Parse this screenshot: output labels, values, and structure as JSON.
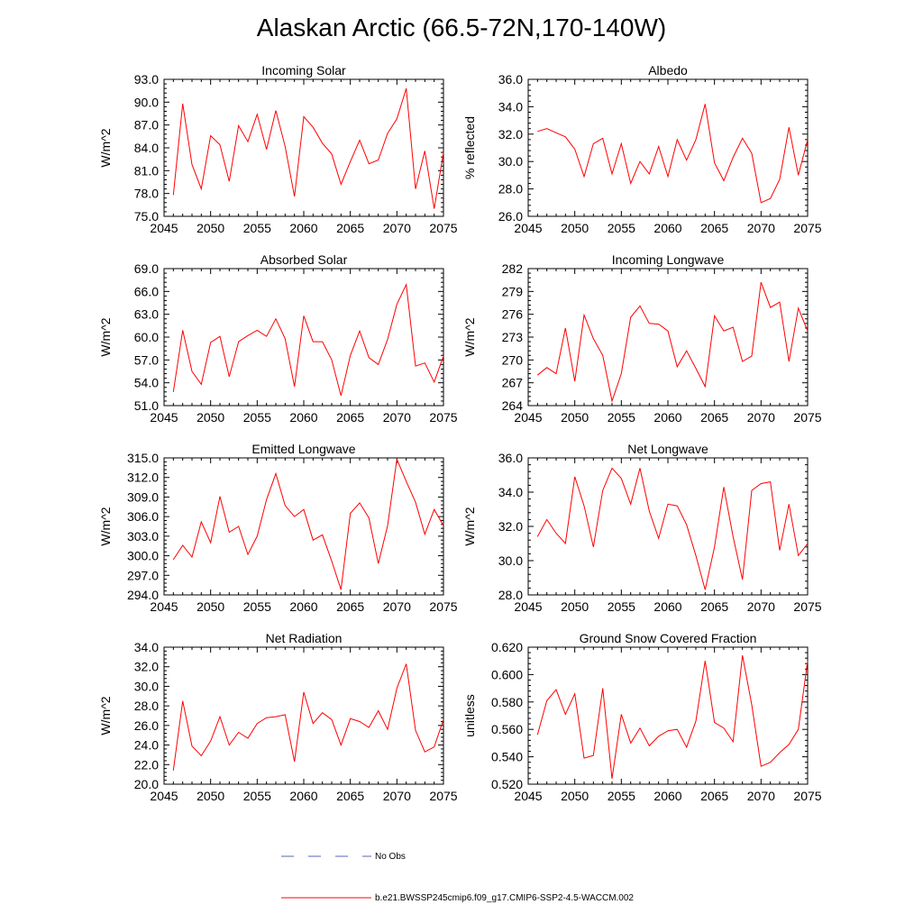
{
  "figure": {
    "title": "Alaskan Arctic (66.5-72N,170-140W)",
    "legend": {
      "obs_label": "No Obs",
      "obs_color": "#5566bb",
      "model_label": "b.e21.BWSSP245cmip6.f09_g17.CMIP6-SSP2-4.5-WACCM.002",
      "model_color": "#ff0000"
    }
  },
  "chart_data": [
    {
      "type": "line",
      "title": "Incoming Solar",
      "ylabel": "W/m^2",
      "xlim": [
        2045,
        2075
      ],
      "ylim": [
        75,
        93
      ],
      "yticks": [
        "75.0",
        "78.0",
        "81.0",
        "84.0",
        "87.0",
        "90.0",
        "93.0"
      ],
      "xticks": [
        "2045",
        "2050",
        "2055",
        "2060",
        "2065",
        "2070",
        "2075"
      ],
      "series": [
        {
          "name": "b.e21.BWSSP245cmip6.f09_g17.CMIP6-SSP2-4.5-WACCM.002",
          "x_start": 2046,
          "values": [
            77.8,
            89.8,
            81.8,
            78.6,
            85.6,
            84.4,
            79.6,
            86.9,
            84.8,
            88.4,
            83.8,
            88.9,
            84.2,
            77.6,
            88.1,
            86.7,
            84.6,
            83.2,
            79.2,
            82.2,
            85.0,
            81.9,
            82.4,
            85.9,
            87.8,
            91.8,
            78.6,
            83.6,
            76.0,
            83.4
          ]
        }
      ]
    },
    {
      "type": "line",
      "title": "Albedo",
      "ylabel": "% reflected",
      "xlim": [
        2045,
        2075
      ],
      "ylim": [
        26,
        36
      ],
      "yticks": [
        "26.0",
        "28.0",
        "30.0",
        "32.0",
        "34.0",
        "36.0"
      ],
      "xticks": [
        "2045",
        "2050",
        "2055",
        "2060",
        "2065",
        "2070",
        "2075"
      ],
      "series": [
        {
          "name": "b.e21.BWSSP245cmip6.f09_g17.CMIP6-SSP2-4.5-WACCM.002",
          "x_start": 2046,
          "values": [
            32.2,
            32.4,
            32.1,
            31.8,
            30.9,
            28.9,
            31.3,
            31.7,
            29.1,
            31.3,
            28.4,
            30.0,
            29.1,
            31.1,
            28.9,
            31.6,
            30.1,
            31.6,
            34.2,
            29.9,
            28.6,
            30.3,
            31.7,
            30.6,
            27.0,
            27.3,
            28.7,
            32.5,
            29.0,
            31.6
          ]
        }
      ]
    },
    {
      "type": "line",
      "title": "Absorbed Solar",
      "ylabel": "W/m^2",
      "xlim": [
        2045,
        2075
      ],
      "ylim": [
        51,
        69
      ],
      "yticks": [
        "51.0",
        "54.0",
        "57.0",
        "60.0",
        "63.0",
        "66.0",
        "69.0"
      ],
      "xticks": [
        "2045",
        "2050",
        "2055",
        "2060",
        "2065",
        "2070",
        "2075"
      ],
      "series": [
        {
          "name": "b.e21.BWSSP245cmip6.f09_g17.CMIP6-SSP2-4.5-WACCM.002",
          "x_start": 2046,
          "values": [
            52.8,
            60.9,
            55.5,
            53.8,
            59.3,
            60.1,
            54.8,
            59.4,
            60.2,
            60.9,
            60.1,
            62.4,
            59.8,
            53.5,
            62.8,
            59.4,
            59.4,
            57.0,
            52.3,
            57.6,
            60.8,
            57.3,
            56.4,
            59.7,
            64.3,
            66.9,
            56.2,
            56.6,
            54.1,
            57.5
          ]
        }
      ]
    },
    {
      "type": "line",
      "title": "Incoming Longwave",
      "ylabel": "W/m^2",
      "xlim": [
        2045,
        2075
      ],
      "ylim": [
        264,
        282
      ],
      "yticks": [
        "264",
        "267",
        "270",
        "273",
        "276",
        "279",
        "282"
      ],
      "xticks": [
        "2045",
        "2050",
        "2055",
        "2060",
        "2065",
        "2070",
        "2075"
      ],
      "series": [
        {
          "name": "b.e21.BWSSP245cmip6.f09_g17.CMIP6-SSP2-4.5-WACCM.002",
          "x_start": 2046,
          "values": [
            268.0,
            269.0,
            268.2,
            274.2,
            267.2,
            275.9,
            272.8,
            270.6,
            264.6,
            268.2,
            275.6,
            277.1,
            274.8,
            274.7,
            273.8,
            269.1,
            271.2,
            268.9,
            266.5,
            275.8,
            273.8,
            274.3,
            269.8,
            270.5,
            280.2,
            276.9,
            277.6,
            269.8,
            276.8,
            273.8
          ]
        }
      ]
    },
    {
      "type": "line",
      "title": "Emitted Longwave",
      "ylabel": "W/m^2",
      "xlim": [
        2045,
        2075
      ],
      "ylim": [
        294,
        315
      ],
      "yticks": [
        "294.0",
        "297.0",
        "300.0",
        "303.0",
        "306.0",
        "309.0",
        "312.0",
        "315.0"
      ],
      "xticks": [
        "2045",
        "2050",
        "2055",
        "2060",
        "2065",
        "2070",
        "2075"
      ],
      "series": [
        {
          "name": "b.e21.BWSSP245cmip6.f09_g17.CMIP6-SSP2-4.5-WACCM.002",
          "x_start": 2046,
          "values": [
            299.4,
            301.6,
            299.8,
            305.2,
            302.0,
            309.1,
            303.6,
            304.5,
            300.2,
            303.0,
            308.6,
            312.6,
            307.7,
            306.0,
            307.1,
            302.4,
            303.2,
            299.2,
            294.8,
            306.5,
            308.1,
            305.8,
            298.8,
            304.6,
            314.8,
            311.4,
            308.2,
            303.3,
            307.1,
            304.6
          ]
        }
      ]
    },
    {
      "type": "line",
      "title": "Net Longwave",
      "ylabel": "W/m^2",
      "xlim": [
        2045,
        2075
      ],
      "ylim": [
        28,
        36
      ],
      "yticks": [
        "28.0",
        "30.0",
        "32.0",
        "34.0",
        "36.0"
      ],
      "xticks": [
        "2045",
        "2050",
        "2055",
        "2060",
        "2065",
        "2070",
        "2075"
      ],
      "series": [
        {
          "name": "b.e21.BWSSP245cmip6.f09_g17.CMIP6-SSP2-4.5-WACCM.002",
          "x_start": 2046,
          "values": [
            31.4,
            32.4,
            31.6,
            31.0,
            34.9,
            33.2,
            30.8,
            34.1,
            35.4,
            34.8,
            33.3,
            35.4,
            32.9,
            31.3,
            33.3,
            33.2,
            32.1,
            30.3,
            28.3,
            30.8,
            34.3,
            31.4,
            28.9,
            34.1,
            34.5,
            34.6,
            30.6,
            33.3,
            30.3,
            31.0
          ]
        }
      ]
    },
    {
      "type": "line",
      "title": "Net Radiation",
      "ylabel": "W/m^2",
      "xlim": [
        2045,
        2075
      ],
      "ylim": [
        20,
        34
      ],
      "yticks": [
        "20.0",
        "22.0",
        "24.0",
        "26.0",
        "28.0",
        "30.0",
        "32.0",
        "34.0"
      ],
      "xticks": [
        "2045",
        "2050",
        "2055",
        "2060",
        "2065",
        "2070",
        "2075"
      ],
      "series": [
        {
          "name": "b.e21.BWSSP245cmip6.f09_g17.CMIP6-SSP2-4.5-WACCM.002",
          "x_start": 2046,
          "values": [
            21.4,
            28.5,
            23.9,
            22.9,
            24.4,
            26.9,
            24.0,
            25.3,
            24.7,
            26.2,
            26.8,
            26.9,
            27.1,
            22.3,
            29.4,
            26.2,
            27.3,
            26.6,
            24.0,
            26.7,
            26.4,
            25.8,
            27.5,
            25.6,
            29.8,
            32.3,
            25.5,
            23.3,
            23.8,
            26.6
          ]
        }
      ]
    },
    {
      "type": "line",
      "title": "Ground Snow Covered Fraction",
      "ylabel": "unitless",
      "xlim": [
        2045,
        2075
      ],
      "ylim": [
        0.52,
        0.62
      ],
      "yticks": [
        "0.520",
        "0.540",
        "0.560",
        "0.580",
        "0.600",
        "0.620"
      ],
      "xticks": [
        "2045",
        "2050",
        "2055",
        "2060",
        "2065",
        "2070",
        "2075"
      ],
      "series": [
        {
          "name": "b.e21.BWSSP245cmip6.f09_g17.CMIP6-SSP2-4.5-WACCM.002",
          "x_start": 2046,
          "values": [
            0.556,
            0.581,
            0.589,
            0.571,
            0.586,
            0.539,
            0.541,
            0.59,
            0.524,
            0.571,
            0.55,
            0.561,
            0.548,
            0.555,
            0.559,
            0.56,
            0.547,
            0.566,
            0.61,
            0.565,
            0.561,
            0.551,
            0.614,
            0.578,
            0.533,
            0.536,
            0.543,
            0.549,
            0.56,
            0.61
          ]
        }
      ]
    }
  ]
}
